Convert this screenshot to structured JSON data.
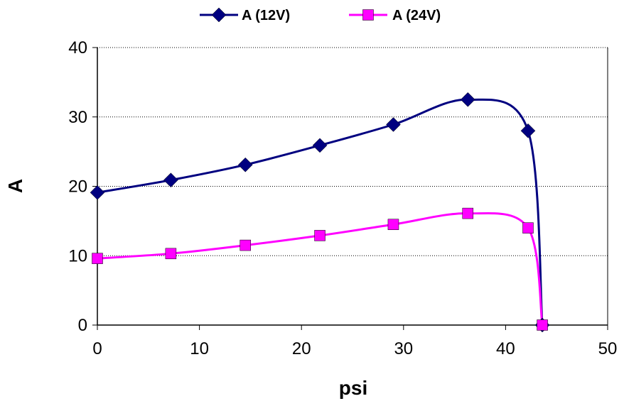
{
  "chart_data": {
    "type": "line",
    "xlabel": "psi",
    "ylabel": "A",
    "xlim": [
      0,
      50
    ],
    "ylim": [
      0,
      40
    ],
    "xticks": [
      "0",
      "10",
      "20",
      "30",
      "40",
      "50"
    ],
    "yticks": [
      "0",
      "10",
      "20",
      "30",
      "40"
    ],
    "grid": "horizontal dotted",
    "legend_position": "top",
    "smooth": true,
    "series": [
      {
        "name": "A (12V)",
        "color": "#000080",
        "marker": "diamond",
        "x": [
          0,
          7.2,
          14.5,
          21.8,
          29,
          36.3,
          42.2,
          43.6
        ],
        "y": [
          19.1,
          20.9,
          23.1,
          25.9,
          28.9,
          32.5,
          28,
          0
        ]
      },
      {
        "name": "A (24V)",
        "color": "#ff00ff",
        "marker": "square",
        "x": [
          0,
          7.2,
          14.5,
          21.8,
          29,
          36.3,
          42.2,
          43.6
        ],
        "y": [
          9.6,
          10.3,
          11.5,
          12.9,
          14.5,
          16.1,
          14,
          0
        ]
      }
    ]
  }
}
